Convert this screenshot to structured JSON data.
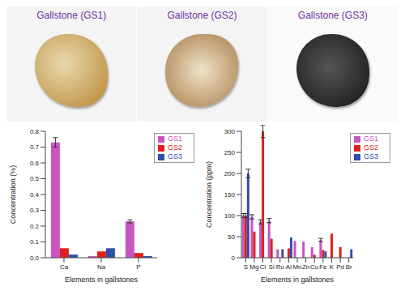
{
  "images": [
    {
      "label": "Gallstone (GS1)"
    },
    {
      "label": "Gallstone (GS2)"
    },
    {
      "label": "Gallstone (GS3)"
    }
  ],
  "chart_data": [
    {
      "type": "bar",
      "x_label": "Elements in gallstones",
      "y_label": "Concentration (%)",
      "categories": [
        "Ca",
        "Na",
        "P"
      ],
      "series": [
        {
          "name": "GS1",
          "color": "#c855c0",
          "values": [
            0.73,
            0.01,
            0.23
          ],
          "errors": [
            0.03,
            null,
            0.01
          ]
        },
        {
          "name": "GS2",
          "color": "#e02020",
          "values": [
            0.06,
            0.04,
            0.03
          ],
          "errors": [
            null,
            null,
            null
          ]
        },
        {
          "name": "GS3",
          "color": "#2f4fa8",
          "values": [
            0.02,
            0.06,
            0.01
          ],
          "errors": [
            null,
            null,
            null
          ]
        }
      ],
      "ylim": [
        0,
        0.8
      ],
      "yticks": [
        {
          "value": 0,
          "label": "0.0"
        },
        0.1,
        0.2,
        0.3,
        0.4,
        0.5,
        0.6,
        0.7,
        0.8
      ],
      "legend": "upper right",
      "grid": false
    },
    {
      "type": "bar",
      "x_label": "Elements in gallstones",
      "y_label": "Concentration (ppm)",
      "categories": [
        "S",
        "Mg",
        "Cl",
        "Si",
        "Ru",
        "Al",
        "Mn",
        "Zn",
        "Cu",
        "Fe",
        "K",
        "Pd",
        "Br"
      ],
      "series": [
        {
          "name": "GS1",
          "color": "#c855c0",
          "values": [
            100,
            97,
            85,
            88,
            20,
            null,
            40,
            38,
            25,
            42,
            null,
            null,
            null
          ],
          "errors": [
            5,
            5,
            5,
            5,
            null,
            null,
            null,
            null,
            null,
            4,
            null,
            null,
            null
          ]
        },
        {
          "name": "GS2",
          "color": "#e02020",
          "values": [
            100,
            62,
            300,
            45,
            null,
            22,
            null,
            null,
            7,
            18,
            57,
            25,
            null
          ],
          "errors": [
            5,
            null,
            15,
            null,
            null,
            null,
            null,
            null,
            null,
            null,
            null,
            null,
            null
          ]
        },
        {
          "name": "GS3",
          "color": "#2f4fa8",
          "values": [
            200,
            null,
            null,
            null,
            20,
            48,
            null,
            null,
            null,
            15,
            null,
            null,
            20
          ],
          "errors": [
            10,
            null,
            null,
            null,
            null,
            null,
            null,
            null,
            null,
            null,
            null,
            null,
            null
          ]
        }
      ],
      "ylim": [
        0,
        300
      ],
      "yticks": [
        0,
        50,
        100,
        150,
        200,
        250,
        300
      ],
      "legend": "upper right",
      "grid": false
    }
  ]
}
